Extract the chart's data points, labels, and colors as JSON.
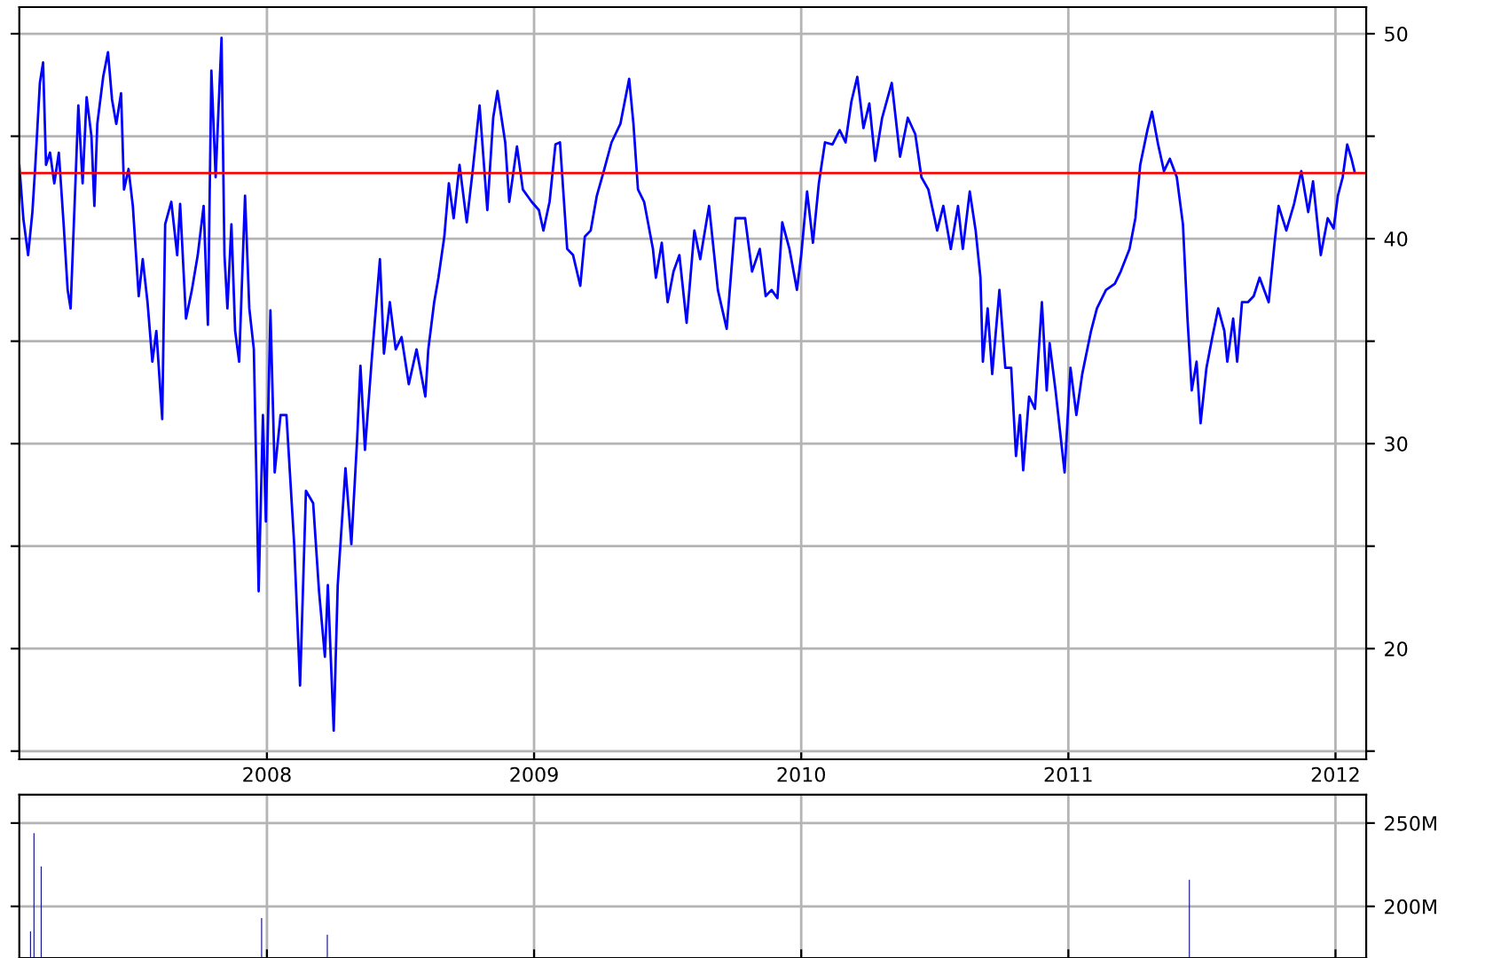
{
  "chart_data": [
    {
      "type": "line",
      "grid": true,
      "xlim": [
        2007.073,
        2012.115
      ],
      "ylim": [
        14.6,
        51.3
      ],
      "xticks": [
        2008,
        2009,
        2010,
        2011,
        2012
      ],
      "yticks": [
        {
          "value": 15,
          "label": null
        },
        20,
        {
          "value": 25,
          "label": null
        },
        30,
        {
          "value": 35,
          "label": null
        },
        40,
        {
          "value": 45,
          "label": null
        },
        50
      ],
      "ref_lines": [
        {
          "axis": "y",
          "value": 43.2,
          "color": "#ff0000"
        }
      ],
      "series": [
        {
          "color": "#0000ff",
          "x": [
            2007.073,
            2007.088,
            2007.106,
            2007.122,
            2007.133,
            2007.15,
            2007.162,
            2007.173,
            2007.188,
            2007.204,
            2007.221,
            2007.239,
            2007.254,
            2007.265,
            2007.283,
            2007.294,
            2007.31,
            2007.325,
            2007.343,
            2007.354,
            2007.365,
            2007.387,
            2007.405,
            2007.42,
            2007.436,
            2007.454,
            2007.465,
            2007.482,
            2007.498,
            2007.52,
            2007.535,
            2007.553,
            2007.571,
            2007.586,
            2007.608,
            2007.619,
            2007.642,
            2007.664,
            2007.675,
            2007.697,
            2007.719,
            2007.741,
            2007.763,
            2007.779,
            2007.792,
            2007.808,
            2007.83,
            2007.841,
            2007.852,
            2007.867,
            2007.881,
            2007.896,
            2007.918,
            2007.934,
            2007.951,
            2007.969,
            2007.985,
            2007.996,
            2008.013,
            2008.029,
            2008.051,
            2008.073,
            2008.102,
            2008.124,
            2008.146,
            2008.173,
            2008.195,
            2008.217,
            2008.228,
            2008.25,
            2008.265,
            2008.294,
            2008.316,
            2008.338,
            2008.35,
            2008.367,
            2008.394,
            2008.423,
            2008.438,
            2008.46,
            2008.482,
            2008.504,
            2008.531,
            2008.56,
            2008.593,
            2008.604,
            2008.626,
            2008.642,
            2008.664,
            2008.681,
            2008.699,
            2008.721,
            2008.748,
            2008.77,
            2008.796,
            2008.825,
            2008.847,
            2008.863,
            2008.892,
            2008.907,
            2008.936,
            2008.958,
            2008.991,
            2009.018,
            2009.035,
            2009.058,
            2009.08,
            2009.097,
            2009.124,
            2009.146,
            2009.173,
            2009.19,
            2009.212,
            2009.235,
            2009.261,
            2009.29,
            2009.323,
            2009.356,
            2009.372,
            2009.389,
            2009.412,
            2009.445,
            2009.456,
            2009.478,
            2009.5,
            2009.522,
            2009.544,
            2009.571,
            2009.6,
            2009.622,
            2009.655,
            2009.688,
            2009.721,
            2009.754,
            2009.79,
            2009.816,
            2009.845,
            2009.867,
            2009.889,
            2009.911,
            2009.929,
            2009.956,
            2009.984,
            2010.0,
            2010.022,
            2010.044,
            2010.066,
            2010.089,
            2010.117,
            2010.144,
            2010.166,
            2010.188,
            2010.21,
            2010.233,
            2010.255,
            2010.277,
            2010.303,
            2010.339,
            2010.37,
            2010.399,
            2010.427,
            2010.45,
            2010.476,
            2010.509,
            2010.532,
            2010.56,
            2010.587,
            2010.605,
            2010.631,
            2010.653,
            2010.671,
            2010.68,
            2010.698,
            2010.715,
            2010.742,
            2010.764,
            2010.786,
            2010.804,
            2010.819,
            2010.831,
            2010.853,
            2010.875,
            2010.901,
            2010.919,
            2010.93,
            2010.952,
            2010.974,
            2010.986,
            2011.008,
            2011.03,
            2011.052,
            2011.085,
            2011.107,
            2011.141,
            2011.174,
            2011.196,
            2011.229,
            2011.251,
            2011.269,
            2011.296,
            2011.313,
            2011.336,
            2011.358,
            2011.38,
            2011.406,
            2011.429,
            2011.446,
            2011.462,
            2011.48,
            2011.495,
            2011.517,
            2011.539,
            2011.561,
            2011.584,
            2011.595,
            2011.617,
            2011.632,
            2011.65,
            2011.672,
            2011.694,
            2011.716,
            2011.75,
            2011.772,
            2011.787,
            2011.816,
            2011.845,
            2011.872,
            2011.898,
            2011.916,
            2011.945,
            2011.971,
            2011.993,
            2012.009,
            2012.027,
            2012.044,
            2012.06,
            2012.071
          ],
          "values": [
            43.6,
            41.0,
            39.2,
            41.3,
            43.6,
            47.6,
            48.6,
            43.6,
            44.2,
            42.7,
            44.2,
            40.7,
            37.5,
            36.6,
            42.7,
            46.5,
            42.7,
            46.9,
            45.0,
            41.6,
            45.6,
            47.9,
            49.1,
            46.8,
            45.6,
            47.1,
            42.4,
            43.4,
            41.6,
            37.2,
            39.0,
            36.9,
            34.0,
            35.5,
            31.2,
            40.7,
            41.8,
            39.2,
            41.7,
            36.1,
            37.5,
            39.2,
            41.6,
            35.8,
            48.2,
            43.0,
            49.8,
            39.2,
            36.6,
            40.7,
            35.5,
            34.0,
            42.1,
            36.6,
            34.6,
            22.8,
            31.4,
            26.2,
            36.5,
            28.6,
            31.4,
            31.4,
            25.1,
            18.2,
            27.7,
            27.1,
            22.8,
            19.6,
            23.1,
            16.0,
            23.1,
            28.8,
            25.1,
            30.3,
            33.8,
            29.7,
            34.4,
            39.0,
            34.4,
            36.9,
            34.6,
            35.2,
            32.9,
            34.6,
            32.3,
            34.6,
            36.9,
            38.1,
            40.1,
            42.7,
            41.0,
            43.6,
            40.8,
            43.3,
            46.5,
            41.4,
            45.9,
            47.2,
            44.7,
            41.8,
            44.5,
            42.4,
            41.8,
            41.4,
            40.4,
            41.8,
            44.6,
            44.7,
            39.5,
            39.2,
            37.7,
            40.1,
            40.4,
            42.1,
            43.3,
            44.7,
            45.6,
            47.8,
            45.6,
            42.4,
            41.8,
            39.5,
            38.1,
            39.8,
            36.9,
            38.4,
            39.2,
            35.9,
            40.4,
            39.0,
            41.6,
            37.5,
            35.6,
            41.0,
            41.0,
            38.4,
            39.5,
            37.2,
            37.5,
            37.1,
            40.8,
            39.5,
            37.5,
            39.2,
            42.3,
            39.8,
            42.7,
            44.7,
            44.6,
            45.3,
            44.7,
            46.7,
            47.9,
            45.4,
            46.6,
            43.8,
            45.9,
            47.6,
            44.0,
            45.9,
            45.1,
            43.0,
            42.4,
            40.4,
            41.6,
            39.5,
            41.6,
            39.5,
            42.3,
            40.4,
            38.1,
            34.0,
            36.6,
            33.4,
            37.5,
            33.7,
            33.7,
            29.4,
            31.4,
            28.7,
            32.3,
            31.7,
            36.9,
            32.6,
            34.9,
            32.6,
            30.0,
            28.6,
            33.7,
            31.4,
            33.4,
            35.5,
            36.6,
            37.5,
            37.8,
            38.4,
            39.5,
            41.0,
            43.6,
            45.3,
            46.2,
            44.6,
            43.3,
            43.9,
            43.0,
            40.7,
            36.1,
            32.6,
            34.0,
            31.0,
            33.7,
            35.2,
            36.6,
            35.5,
            34.0,
            36.1,
            34.0,
            36.9,
            36.9,
            37.2,
            38.1,
            36.9,
            39.8,
            41.6,
            40.4,
            41.7,
            43.3,
            41.3,
            42.8,
            39.2,
            41.0,
            40.5,
            42.1,
            43.0,
            44.6,
            43.9,
            43.3
          ]
        }
      ]
    },
    {
      "type": "bar",
      "grid": true,
      "tick_labels": "y",
      "xlim": [
        2007.073,
        2012.115
      ],
      "ylim": [
        169,
        267
      ],
      "xticks": [
        {
          "value": 2008,
          "label": null
        },
        {
          "value": 2009,
          "label": null
        },
        {
          "value": 2010,
          "label": null
        },
        {
          "value": 2011,
          "label": null
        },
        {
          "value": 2012,
          "label": null
        }
      ],
      "yticks": [
        {
          "value": 200,
          "label": "200M"
        },
        {
          "value": 250,
          "label": "250M"
        }
      ],
      "x": [
        2007.115,
        2007.128,
        2007.155,
        2007.98,
        2008.226,
        2011.453
      ],
      "series": [
        {
          "color": "#1a1a8c",
          "values": [
            185,
            244,
            224,
            193,
            183,
            216
          ]
        }
      ]
    }
  ]
}
